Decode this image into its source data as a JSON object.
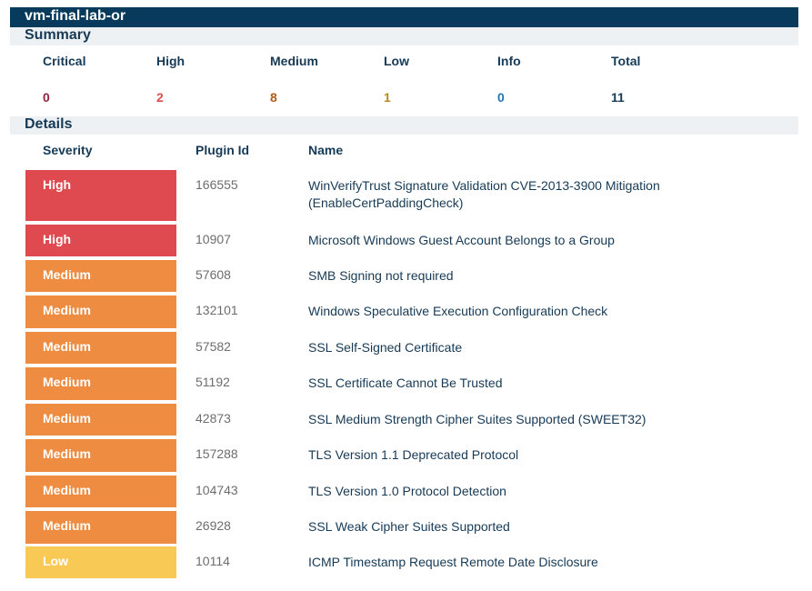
{
  "host": "vm-final-lab-or",
  "summary": {
    "title": "Summary",
    "headers": [
      "Critical",
      "High",
      "Medium",
      "Low",
      "Info",
      "Total"
    ],
    "values": [
      "0",
      "2",
      "8",
      "1",
      "0",
      "11"
    ],
    "colors": [
      "#91243e",
      "#dd4b50",
      "#b05a16",
      "#b9891b",
      "#1e74b8",
      "#163a56"
    ]
  },
  "details": {
    "title": "Details",
    "columns": [
      "Severity",
      "Plugin Id",
      "Name"
    ],
    "rows": [
      {
        "severity": "High",
        "plugin_id": "166555",
        "name": "WinVerifyTrust Signature Validation CVE-2013-3900 Mitigation (EnableCertPaddingCheck)"
      },
      {
        "severity": "High",
        "plugin_id": "10907",
        "name": "Microsoft Windows Guest Account Belongs to a Group"
      },
      {
        "severity": "Medium",
        "plugin_id": "57608",
        "name": "SMB Signing not required"
      },
      {
        "severity": "Medium",
        "plugin_id": "132101",
        "name": "Windows Speculative Execution Configuration Check"
      },
      {
        "severity": "Medium",
        "plugin_id": "57582",
        "name": "SSL Self-Signed Certificate"
      },
      {
        "severity": "Medium",
        "plugin_id": "51192",
        "name": "SSL Certificate Cannot Be Trusted"
      },
      {
        "severity": "Medium",
        "plugin_id": "42873",
        "name": "SSL Medium Strength Cipher Suites Supported (SWEET32)"
      },
      {
        "severity": "Medium",
        "plugin_id": "157288",
        "name": "TLS Version 1.1 Deprecated Protocol"
      },
      {
        "severity": "Medium",
        "plugin_id": "104743",
        "name": "TLS Version 1.0 Protocol Detection"
      },
      {
        "severity": "Medium",
        "plugin_id": "26928",
        "name": "SSL Weak Cipher Suites Supported"
      },
      {
        "severity": "Low",
        "plugin_id": "10114",
        "name": "ICMP Timestamp Request Remote Date Disclosure"
      }
    ]
  }
}
